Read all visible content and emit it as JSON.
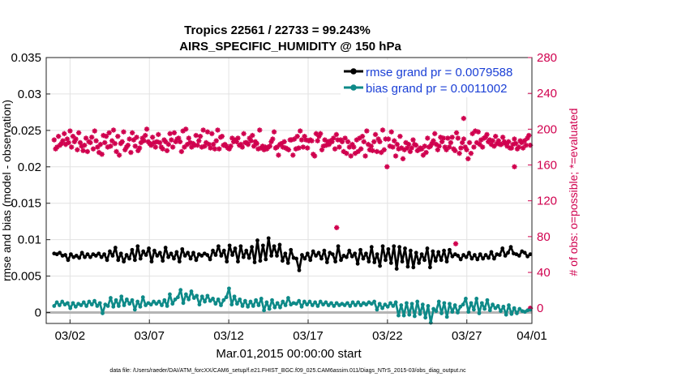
{
  "chart_data": {
    "type": "line",
    "title_line1": "Tropics 22561 / 22733 = 99.243%",
    "title_line2": "AIRS_SPECIFIC_HUMIDITY @ 150 hPa",
    "ylabel_left": "rmse and bias (model - observation)",
    "ylabel_right": "# of obs: o=possible; *=evaluated",
    "xlabel": "Mar.01,2015 00:00:00 start",
    "footnote": "data file: /Users/raeder/DAI/ATM_forcXX/CAM6_setup/f.e21.FHIST_BGC.f09_025.CAM6assim.011/Diags_NTrS_2015-03/obs_diag_output.nc",
    "xlim": [
      0.5,
      31.1
    ],
    "ylim_left": [
      -0.0015,
      0.035
    ],
    "ylim_right": [
      -17,
      280
    ],
    "xticks": [
      {
        "day": 2,
        "label": "03/02"
      },
      {
        "day": 7,
        "label": "03/07"
      },
      {
        "day": 12,
        "label": "03/12"
      },
      {
        "day": 17,
        "label": "03/17"
      },
      {
        "day": 22,
        "label": "03/22"
      },
      {
        "day": 27,
        "label": "03/27"
      },
      {
        "day": 32,
        "label": "04/01"
      }
    ],
    "yticks_left": [
      {
        "v": 0,
        "label": "0"
      },
      {
        "v": 0.005,
        "label": "0.005"
      },
      {
        "v": 0.01,
        "label": "0.01"
      },
      {
        "v": 0.015,
        "label": "0.015"
      },
      {
        "v": 0.02,
        "label": "0.02"
      },
      {
        "v": 0.025,
        "label": "0.025"
      },
      {
        "v": 0.03,
        "label": "0.03"
      },
      {
        "v": 0.035,
        "label": "0.035"
      }
    ],
    "yticks_right": [
      {
        "v": 0,
        "label": "0"
      },
      {
        "v": 40,
        "label": "40"
      },
      {
        "v": 80,
        "label": "80"
      },
      {
        "v": 120,
        "label": "120"
      },
      {
        "v": 160,
        "label": "160"
      },
      {
        "v": 200,
        "label": "200"
      },
      {
        "v": 240,
        "label": "240"
      },
      {
        "v": 280,
        "label": "280"
      }
    ],
    "legend": [
      {
        "label": "rmse grand pr = 0.0079588",
        "color": "#000000"
      },
      {
        "label": "bias grand pr = 0.0011002",
        "color": "#0e8a88"
      }
    ],
    "colors": {
      "rmse": "#000000",
      "bias": "#0e8a88",
      "obs": "#d0004e",
      "zero": "#b4b4b4",
      "grid": "#e2e2e2"
    },
    "series": {
      "rmse": [
        0.0081,
        0.008,
        0.0082,
        0.0078,
        0.0079,
        0.0072,
        0.008,
        0.0076,
        0.0078,
        0.0075,
        0.0082,
        0.0076,
        0.008,
        0.0076,
        0.008,
        0.0078,
        0.0081,
        0.0076,
        0.008,
        0.0072,
        0.0084,
        0.0078,
        0.0089,
        0.0072,
        0.0081,
        0.007,
        0.0079,
        0.0074,
        0.0086,
        0.0072,
        0.0091,
        0.0074,
        0.0084,
        0.0079,
        0.0088,
        0.007,
        0.0085,
        0.0078,
        0.0082,
        0.0071,
        0.0089,
        0.0076,
        0.0081,
        0.0074,
        0.0083,
        0.007,
        0.0087,
        0.0078,
        0.0082,
        0.0074,
        0.0082,
        0.0072,
        0.008,
        0.0078,
        0.0081,
        0.0079,
        0.0073,
        0.0085,
        0.0079,
        0.0091,
        0.0078,
        0.0085,
        0.007,
        0.0092,
        0.0079,
        0.0088,
        0.007,
        0.0091,
        0.0076,
        0.0085,
        0.0075,
        0.009,
        0.0069,
        0.0099,
        0.0071,
        0.0092,
        0.0073,
        0.0102,
        0.0078,
        0.0091,
        0.0078,
        0.0093,
        0.0071,
        0.0081,
        0.0068,
        0.0086,
        0.0075,
        0.0074,
        0.0058,
        0.0079,
        0.0074,
        0.0081,
        0.0072,
        0.0084,
        0.0078,
        0.0082,
        0.0074,
        0.0085,
        0.0069,
        0.0082,
        0.008,
        0.007,
        0.0091,
        0.0072,
        0.0078,
        0.0076,
        0.0085,
        0.0077,
        0.0081,
        0.0067,
        0.0086,
        0.0074,
        0.0081,
        0.007,
        0.009,
        0.0069,
        0.008,
        0.0064,
        0.0091,
        0.0072,
        0.0087,
        0.0068,
        0.0091,
        0.006,
        0.009,
        0.007,
        0.0088,
        0.0063,
        0.0085,
        0.0062,
        0.0082,
        0.0068,
        0.008,
        0.0072,
        0.0088,
        0.0062,
        0.0084,
        0.0071,
        0.0083,
        0.0072,
        0.0085,
        0.007,
        0.0086,
        0.0077,
        0.008,
        0.0078,
        0.0073,
        0.0079,
        0.0076,
        0.0082,
        0.0074,
        0.0079,
        0.0073,
        0.008,
        0.0074,
        0.0079,
        0.0075,
        0.0083,
        0.0074,
        0.008,
        0.0079,
        0.0088,
        0.0078,
        0.0082,
        0.009,
        0.0081,
        0.008,
        0.0078,
        0.0084,
        0.0082,
        0.0077,
        0.008
      ],
      "bias": [
        0.0009,
        0.0014,
        0.001,
        0.0015,
        0.0011,
        0.0013,
        0.0006,
        0.0013,
        0.0008,
        0.0012,
        0.001,
        0.0014,
        0.0009,
        0.0015,
        0.0011,
        0.0016,
        0.0009,
        0.0013,
        -0.0001,
        0.0011,
        0.0009,
        0.002,
        0.0008,
        0.0017,
        0.0009,
        0.0022,
        0.001,
        0.0018,
        0.0012,
        0.0017,
        0.0004,
        0.0015,
        0.0008,
        0.0021,
        0.001,
        0.0013,
        0.0011,
        0.0015,
        0.0012,
        0.0015,
        0.001,
        0.0017,
        0.0009,
        0.0025,
        0.0012,
        0.0018,
        0.0021,
        0.0031,
        0.0013,
        0.0025,
        0.0018,
        0.0029,
        0.002,
        0.0023,
        0.0011,
        0.0022,
        0.0015,
        0.0023,
        0.0016,
        0.0019,
        0.0012,
        0.0018,
        0.001,
        0.0017,
        0.0021,
        0.0033,
        0.0011,
        0.0022,
        0.0012,
        0.0018,
        0.0009,
        0.0016,
        0.0008,
        0.0015,
        0.0009,
        0.0017,
        0.001,
        0.0019,
        0.0003,
        0.0014,
        0.0005,
        0.0017,
        0.0007,
        0.0013,
        0.0007,
        0.0015,
        0.001,
        0.002,
        0.0011,
        0.0013,
        0.0012,
        0.0016,
        0.0008,
        0.0015,
        0.0011,
        0.0015,
        0.001,
        0.0014,
        0.0009,
        0.0015,
        0.0011,
        0.0014,
        0.001,
        0.0013,
        0.0009,
        0.0013,
        0.001,
        0.0012,
        0.001,
        0.0013,
        0.0009,
        0.0014,
        0.001,
        0.0014,
        0.001,
        0.0013,
        0.0011,
        0.0014,
        0.0012,
        0.0015,
        0.0004,
        0.0012,
        0.0006,
        0.0011,
        0.0008,
        0.0013,
        0.0009,
        0.0014,
        -0.0004,
        0.001,
        -0.0004,
        0.0013,
        -0.0003,
        0.0012,
        -0.0005,
        0.0015,
        -0.0002,
        0.0011,
        -0.0007,
        0.0009,
        -0.0014,
        0.0005,
        0.0002,
        0.0015,
        -0.0001,
        0.0013,
        -0.0006,
        0.0012,
        0.0001,
        0.001,
        0.0,
        0.0008,
        0.0011,
        0.0019,
        0.0001,
        0.0013,
        0.0004,
        0.0019,
        -0.0001,
        0.0013,
        0.0005,
        0.0017,
        0.0003,
        0.0011,
        0.0006,
        0.0009,
        0.0002,
        0.0008,
        -0.0003,
        0.001,
        -0.0002,
        0.0006,
        -0.0001,
        0.0005,
        0.0002,
        0.0001,
        0.0003,
        0.0004
      ],
      "obs": [
        188,
        178,
        180,
        192,
        182,
        184,
        187,
        195,
        183,
        189,
        185,
        198,
        180,
        192,
        186,
        189,
        177,
        196,
        185,
        181,
        176,
        182,
        190,
        175,
        186,
        185,
        191,
        178,
        198,
        187,
        180,
        174,
        183,
        172,
        193,
        185,
        192,
        180,
        196,
        181,
        187,
        199,
        184,
        175,
        192,
        171,
        184,
        186,
        197,
        177,
        180,
        182,
        189,
        174,
        196,
        188,
        181,
        191,
        176,
        179,
        185,
        190,
        187,
        193,
        200,
        186,
        184,
        182,
        191,
        185,
        180,
        186,
        194,
        185,
        180,
        178,
        188,
        186,
        176,
        183,
        195,
        188,
        180,
        196,
        186,
        189,
        190,
        186,
        175,
        198,
        180,
        200,
        183,
        190,
        185,
        180,
        184,
        182,
        193,
        182,
        187,
        192,
        180,
        199,
        181,
        185,
        197,
        183,
        179,
        195,
        183,
        178,
        187,
        199,
        178,
        191,
        192,
        182,
        183,
        181,
        179,
        178,
        181,
        190,
        186,
        188,
        186,
        190,
        182,
        183,
        180,
        195,
        185,
        185,
        183,
        190,
        187,
        193,
        181,
        186,
        184,
        178,
        199,
        179,
        181,
        177,
        180,
        178,
        180,
        181,
        186,
        189,
        197,
        179,
        180,
        171,
        183,
        184,
        180,
        186,
        179,
        178,
        177,
        188,
        188,
        171,
        189,
        178,
        192,
        179,
        198,
        188,
        180,
        192,
        188,
        179,
        187,
        188,
        187,
        172,
        170,
        195,
        187,
        192,
        195,
        177,
        181,
        188,
        182,
        186,
        183,
        187,
        186,
        190,
        178,
        194,
        188,
        180,
        188,
        186,
        175,
        190,
        173,
        186,
        180,
        170,
        183,
        180,
        173,
        188,
        175,
        190,
        178,
        192,
        186,
        170,
        198,
        183,
        177,
        181,
        176,
        186,
        194,
        175,
        189,
        186,
        174,
        199,
        177,
        189,
        158,
        189,
        181,
        197,
        180,
        187,
        170,
        183,
        178,
        192,
        179,
        167,
        177,
        185,
        179,
        183,
        175,
        179,
        188,
        183,
        182,
        176,
        177,
        179,
        178,
        171,
        181,
        174,
        190,
        180,
        181,
        184,
        187,
        195,
        183,
        177,
        181,
        191,
        186,
        190,
        180,
        177,
        190,
        180,
        185,
        191,
        178,
        176,
        196,
        190,
        173,
        179,
        185,
        189,
        180,
        177,
        167,
        185,
        173,
        195,
        180,
        198,
        185,
        197,
        183,
        188,
        180,
        190,
        191,
        194,
        186,
        188,
        183,
        187,
        181,
        192,
        184,
        187,
        183,
        183,
        191,
        186,
        184,
        181,
        186,
        179,
        179,
        183,
        189,
        184,
        178,
        180,
        187,
        185,
        179,
        187,
        182,
        190,
        193,
        182
      ],
      "obs_outliers": [
        {
          "day": 18.8,
          "v": 90
        },
        {
          "day": 26.3,
          "v": 72
        },
        {
          "day": 26.8,
          "v": 212
        },
        {
          "day": 30.0,
          "v": 158
        },
        {
          "day": 31.0,
          "v": 0
        }
      ]
    }
  }
}
